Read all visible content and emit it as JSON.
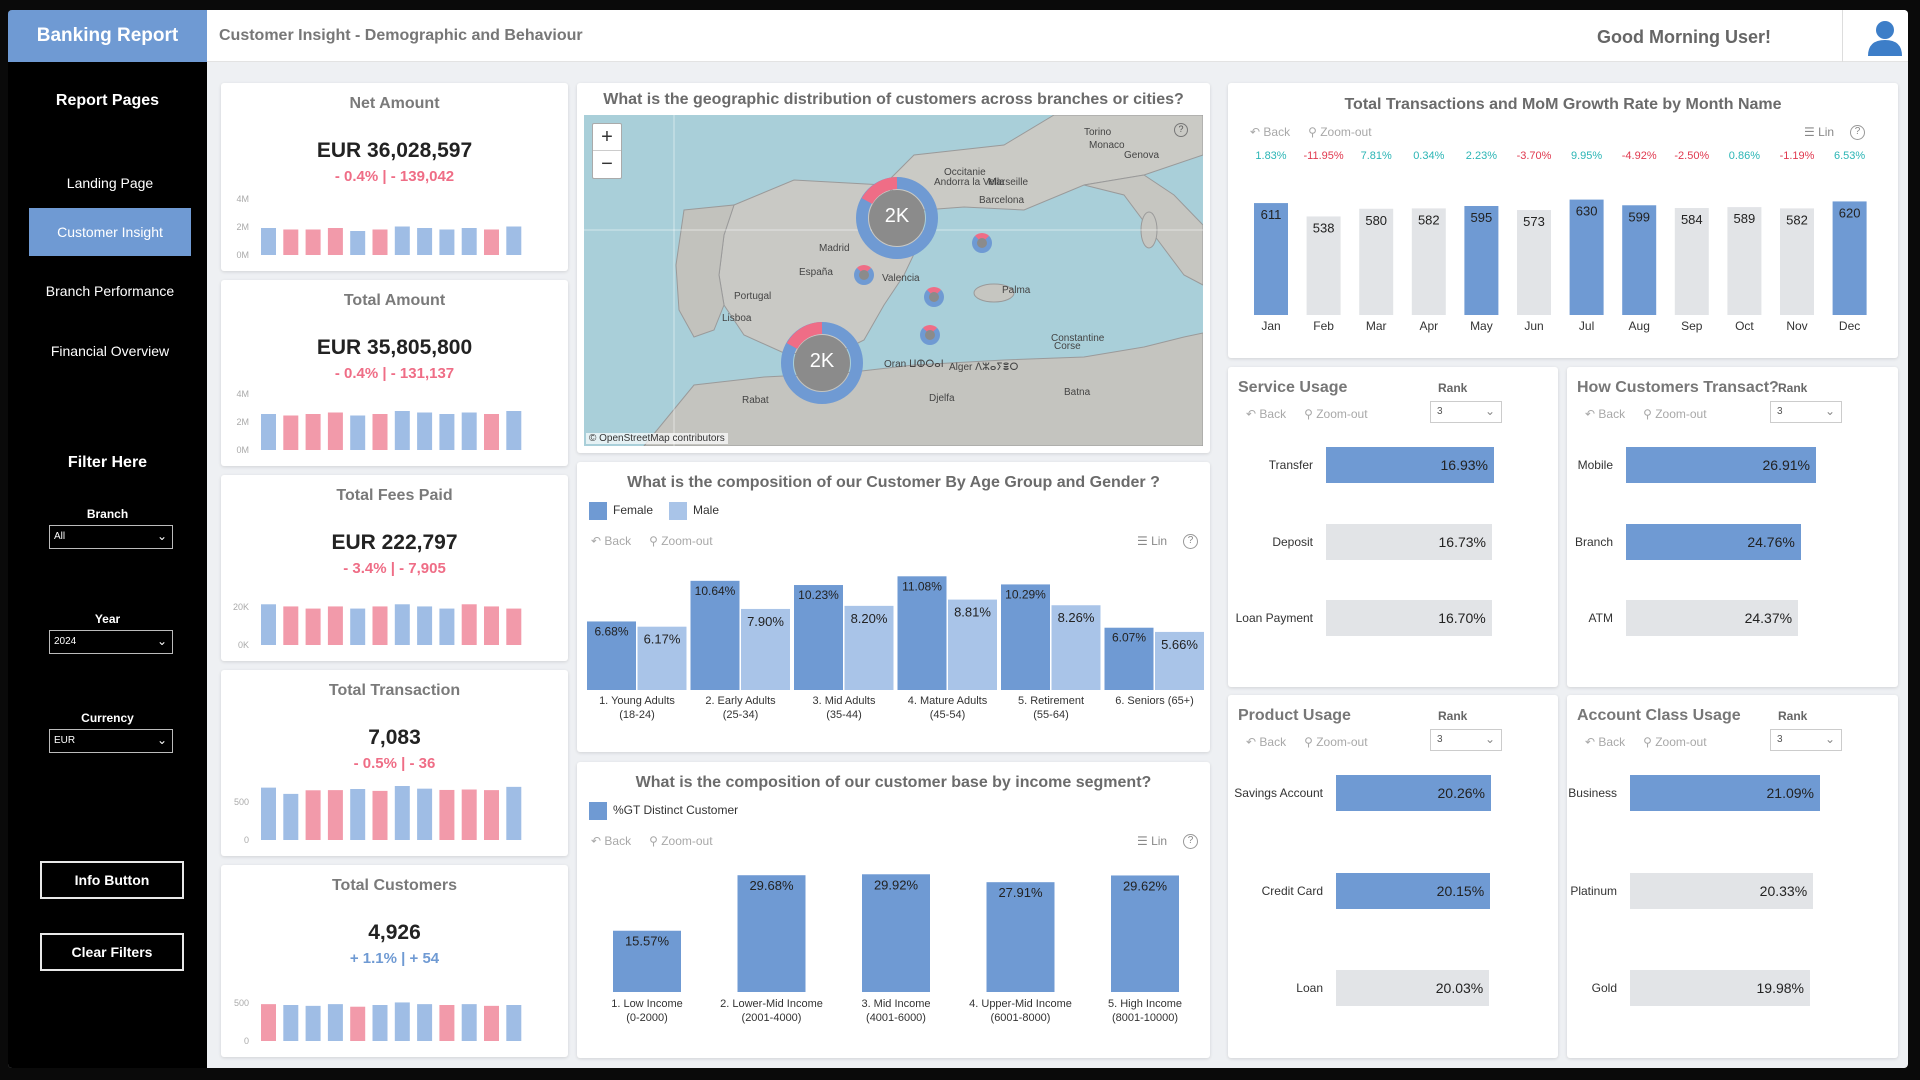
{
  "brand": "Banking Report",
  "header": {
    "title": "Customer Insight - Demographic and Behaviour",
    "greeting": "Good Morning User!"
  },
  "sidebar": {
    "pages_heading": "Report Pages",
    "pages": [
      "Landing Page",
      "Customer Insight",
      "Branch Performance",
      "Financial Overview"
    ],
    "active_page": "Customer Insight",
    "filter_heading": "Filter Here",
    "filters": [
      {
        "label": "Branch",
        "value": "All"
      },
      {
        "label": "Year",
        "value": "2024"
      },
      {
        "label": "Currency",
        "value": "EUR"
      }
    ],
    "buttons": {
      "info": "Info Button",
      "clear": "Clear Filters"
    }
  },
  "toolbar": {
    "back": "Back",
    "zoom": "Zoom-out",
    "lin": "Lin",
    "help": "?"
  },
  "kpis": [
    {
      "title": "Net Amount",
      "value": "EUR 36,028,597",
      "pct": "- 0.4%",
      "sep": "|",
      "delta": "- 139,042",
      "trend": "neg",
      "axis": [
        "4M",
        "2M",
        "0M"
      ],
      "ymax": 4000000,
      "spark": [
        1800000,
        1700000,
        1700000,
        1800000,
        1600000,
        1700000,
        1900000,
        1800000,
        1700000,
        1800000,
        1700000,
        1900000
      ],
      "spark_color": [
        "b",
        "r",
        "r",
        "r",
        "b",
        "r",
        "b",
        "b",
        "b",
        "b",
        "r",
        "b"
      ]
    },
    {
      "title": "Total Amount",
      "value": "EUR 35,805,800",
      "pct": "- 0.4%",
      "sep": "|",
      "delta": "- 131,137",
      "trend": "neg",
      "axis": [
        "4M",
        "2M",
        "0M"
      ],
      "ymax": 4000000,
      "spark": [
        2400000,
        2300000,
        2400000,
        2500000,
        2300000,
        2400000,
        2600000,
        2500000,
        2400000,
        2500000,
        2400000,
        2600000
      ],
      "spark_color": [
        "b",
        "r",
        "r",
        "r",
        "b",
        "r",
        "b",
        "b",
        "b",
        "b",
        "r",
        "b"
      ]
    },
    {
      "title": "Total Fees Paid",
      "value": "EUR 222,797",
      "pct": "- 3.4%",
      "sep": "|",
      "delta": "- 7,905",
      "trend": "neg",
      "axis": [
        "20K",
        "0K"
      ],
      "ymax": 28000,
      "spark": [
        19000,
        18000,
        17000,
        18000,
        17000,
        18000,
        19000,
        18000,
        17000,
        19000,
        18000,
        17000
      ],
      "spark_color": [
        "b",
        "r",
        "r",
        "r",
        "b",
        "r",
        "b",
        "b",
        "b",
        "r",
        "r",
        "r"
      ]
    },
    {
      "title": "Total Transaction",
      "value": "7,083",
      "pct": "- 0.5%",
      "sep": "|",
      "delta": "- 36",
      "trend": "neg",
      "axis": [
        "500",
        "0"
      ],
      "ymax": 700,
      "spark": [
        611,
        538,
        580,
        582,
        595,
        573,
        630,
        599,
        584,
        589,
        582,
        620
      ],
      "spark_color": [
        "b",
        "b",
        "r",
        "r",
        "b",
        "r",
        "b",
        "b",
        "r",
        "r",
        "r",
        "b"
      ]
    },
    {
      "title": "Total Customers",
      "value": "4,926",
      "pct": "+ 1.1%",
      "sep": "|",
      "delta": "+ 54",
      "trend": "pos",
      "axis": [
        "500",
        "0"
      ],
      "ymax": 700,
      "spark": [
        430,
        420,
        410,
        430,
        400,
        420,
        450,
        430,
        420,
        430,
        410,
        420
      ],
      "spark_color": [
        "r",
        "b",
        "b",
        "b",
        "r",
        "b",
        "b",
        "b",
        "r",
        "b",
        "r",
        "b"
      ]
    }
  ],
  "map": {
    "title": "What is the geographic distribution of customers across branches or cities?",
    "attribution": "© OpenStreetMap contributors",
    "zoom_in": "+",
    "zoom_out": "−",
    "places": [
      "Andorra la Vella",
      "Barcelona",
      "España",
      "Portugal",
      "Lisboa",
      "Palma",
      "Madrid",
      "Valencia",
      "Oran ⵡⵀⵔⴰⵏ",
      "Alger ⴷⵣⴰⵢⴻⵔ",
      "Constantine",
      "Batna",
      "Djelfa",
      "Rabat",
      "Marseille",
      "Monaco",
      "Torino",
      "Genova",
      "Occitanie",
      "Corse"
    ],
    "clusters": [
      {
        "label": "2K"
      },
      {
        "label": "2K"
      }
    ]
  },
  "age_chart": {
    "title": "What is the composition of our Customer By Age Group and Gender ?",
    "legend": [
      "Female",
      "Male"
    ],
    "colors": {
      "Female": "#6f9ad3",
      "Male": "#a9c4e8"
    },
    "chart_data": {
      "type": "bar",
      "categories": [
        "1. Young Adults (18-24)",
        "2. Early Adults (25-34)",
        "3. Mid Adults (35-44)",
        "4. Mature Adults (45-54)",
        "5. Retirement (55-64)",
        "6. Seniors (65+)"
      ],
      "category_lines": [
        [
          "1. Young Adults",
          "(18-24)"
        ],
        [
          "2. Early Adults",
          "(25-34)"
        ],
        [
          "3. Mid Adults",
          "(35-44)"
        ],
        [
          "4. Mature Adults",
          "(45-54)"
        ],
        [
          "5. Retirement",
          "(55-64)"
        ],
        [
          "6. Seniors (65+)",
          ""
        ]
      ],
      "series": [
        {
          "name": "Female",
          "values": [
            6.68,
            10.64,
            10.23,
            11.08,
            10.29,
            6.07
          ]
        },
        {
          "name": "Male",
          "values": [
            6.17,
            7.9,
            8.2,
            8.81,
            8.26,
            5.66
          ]
        }
      ],
      "labels": [
        [
          "6.68%",
          "10.64%",
          "10.23%",
          "11.08%",
          "10.29%",
          "6.07%"
        ],
        [
          "6.17%",
          "7.90%",
          "8.20%",
          "8.81%",
          "8.26%",
          "5.66%"
        ]
      ],
      "ylim": [
        0,
        11.5
      ]
    }
  },
  "income_chart": {
    "title": "What is the composition of our customer base by income segment?",
    "legend": [
      "%GT Distinct Customer"
    ],
    "color": "#6f9ad3",
    "chart_data": {
      "type": "bar",
      "categories": [
        "1. Low Income (0-2000)",
        "2. Lower-Mid Income (2001-4000)",
        "3. Mid Income (4001-6000)",
        "4. Upper-Mid Income (6001-8000)",
        "5. High Income (8001-10000)"
      ],
      "category_lines": [
        [
          "1. Low Income",
          "(0-2000)"
        ],
        [
          "2. Lower-Mid Income",
          "(2001-4000)"
        ],
        [
          "3. Mid Income",
          "(4001-6000)"
        ],
        [
          "4. Upper-Mid Income",
          "(6001-8000)"
        ],
        [
          "5. High Income",
          "(8001-10000)"
        ]
      ],
      "values": [
        15.57,
        29.68,
        29.92,
        27.91,
        29.62
      ],
      "labels": [
        "15.57%",
        "29.68%",
        "29.92%",
        "27.91%",
        "29.62%"
      ],
      "ylim": [
        0,
        30.5
      ]
    }
  },
  "monthly_chart": {
    "title": "Total Transactions and MoM Growth Rate by Month Name",
    "chart_data": {
      "type": "bar",
      "categories": [
        "Jan",
        "Feb",
        "Mar",
        "Apr",
        "May",
        "Jun",
        "Jul",
        "Aug",
        "Sep",
        "Oct",
        "Nov",
        "Dec"
      ],
      "values": [
        611,
        538,
        580,
        582,
        595,
        573,
        630,
        599,
        584,
        589,
        582,
        620
      ],
      "growth": [
        "1.83%",
        "-11.95%",
        "7.81%",
        "0.34%",
        "2.23%",
        "-3.70%",
        "9.95%",
        "-4.92%",
        "-2.50%",
        "0.86%",
        "-1.19%",
        "6.53%"
      ],
      "growth_sign": [
        "pos",
        "neg",
        "pos",
        "pos",
        "pos",
        "neg",
        "pos",
        "neg",
        "neg",
        "pos",
        "neg",
        "pos"
      ],
      "highlight": [
        true,
        false,
        false,
        false,
        true,
        false,
        true,
        true,
        false,
        false,
        false,
        true
      ],
      "ylim": [
        0,
        660
      ]
    },
    "colors": {
      "highlight": "#6f9ad3",
      "base": "#e2e4e7",
      "pos": "#2bb5b5",
      "neg": "#e0394f"
    }
  },
  "rank_panels": [
    {
      "title": "Service Usage",
      "rank_label": "Rank",
      "rank_value": "3",
      "chart_data": {
        "type": "bar",
        "categories": [
          "Transfer",
          "Deposit",
          "Loan Payment"
        ],
        "values": [
          16.93,
          16.73,
          16.7
        ],
        "labels": [
          "16.93%",
          "16.73%",
          "16.70%"
        ],
        "highlight": [
          true,
          false,
          false
        ]
      }
    },
    {
      "title": "How Customers Transact?",
      "rank_label": "Rank",
      "rank_value": "3",
      "chart_data": {
        "type": "bar",
        "categories": [
          "Mobile",
          "Branch",
          "ATM"
        ],
        "values": [
          26.91,
          24.76,
          24.37
        ],
        "labels": [
          "26.91%",
          "24.76%",
          "24.37%"
        ],
        "highlight": [
          true,
          true,
          false
        ]
      }
    },
    {
      "title": "Product Usage",
      "rank_label": "Rank",
      "rank_value": "3",
      "chart_data": {
        "type": "bar",
        "categories": [
          "Savings Account",
          "Credit Card",
          "Loan"
        ],
        "values": [
          20.26,
          20.15,
          20.03
        ],
        "labels": [
          "20.26%",
          "20.15%",
          "20.03%"
        ],
        "highlight": [
          true,
          true,
          false
        ]
      }
    },
    {
      "title": "Account Class Usage",
      "rank_label": "Rank",
      "rank_value": "3",
      "chart_data": {
        "type": "bar",
        "categories": [
          "Business",
          "Platinum",
          "Gold"
        ],
        "values": [
          21.09,
          20.33,
          19.98
        ],
        "labels": [
          "21.09%",
          "20.33%",
          "19.98%"
        ],
        "highlight": [
          true,
          false,
          false
        ]
      }
    }
  ]
}
